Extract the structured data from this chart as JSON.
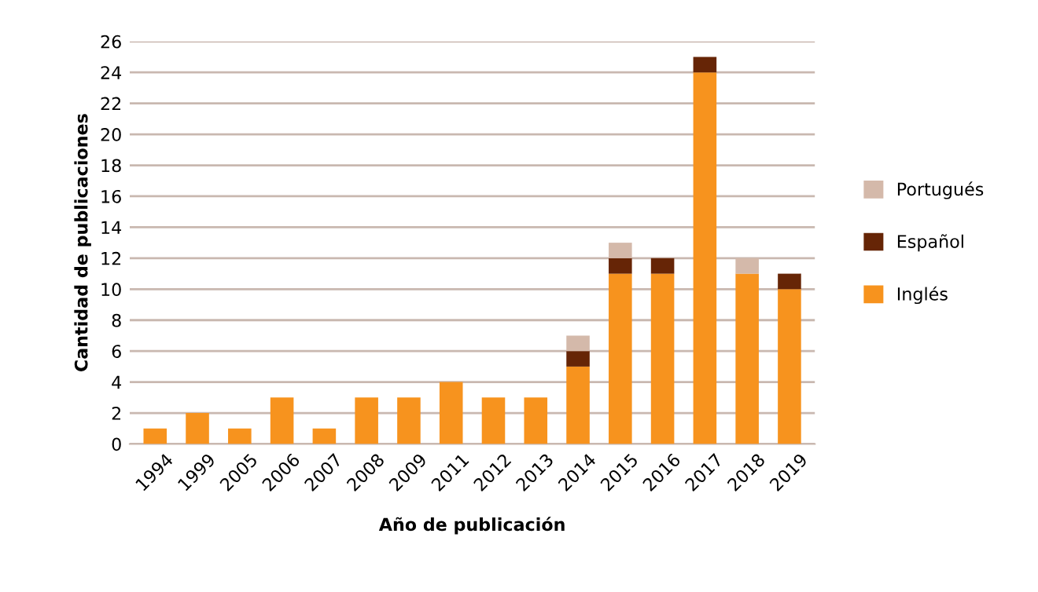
{
  "chart_data": {
    "type": "bar",
    "stacked": true,
    "xlabel": "Año de publicación",
    "ylabel": "Cantidad de publicaciones",
    "categories": [
      "1994",
      "1999",
      "2005",
      "2006",
      "2007",
      "2008",
      "2009",
      "2011",
      "2012",
      "2013",
      "2014",
      "2015",
      "2016",
      "2017",
      "2018",
      "2019"
    ],
    "series": [
      {
        "name": "Inglés",
        "color": "#f7931e",
        "values": [
          1,
          2,
          1,
          3,
          1,
          3,
          3,
          4,
          3,
          3,
          5,
          11,
          11,
          24,
          11,
          10
        ]
      },
      {
        "name": "Español",
        "color": "#662506",
        "values": [
          0,
          0,
          0,
          0,
          0,
          0,
          0,
          0,
          0,
          0,
          1,
          1,
          1,
          1,
          0,
          1
        ]
      },
      {
        "name": "Portugués",
        "color": "#d4b9aa",
        "values": [
          0,
          0,
          0,
          0,
          0,
          0,
          0,
          0,
          0,
          0,
          1,
          1,
          0,
          0,
          1,
          0
        ]
      }
    ],
    "ylim": [
      0,
      26
    ],
    "yticks": [
      0,
      2,
      4,
      6,
      8,
      10,
      12,
      14,
      16,
      18,
      20,
      22,
      24,
      26
    ],
    "grid": "y",
    "legend": "right"
  }
}
